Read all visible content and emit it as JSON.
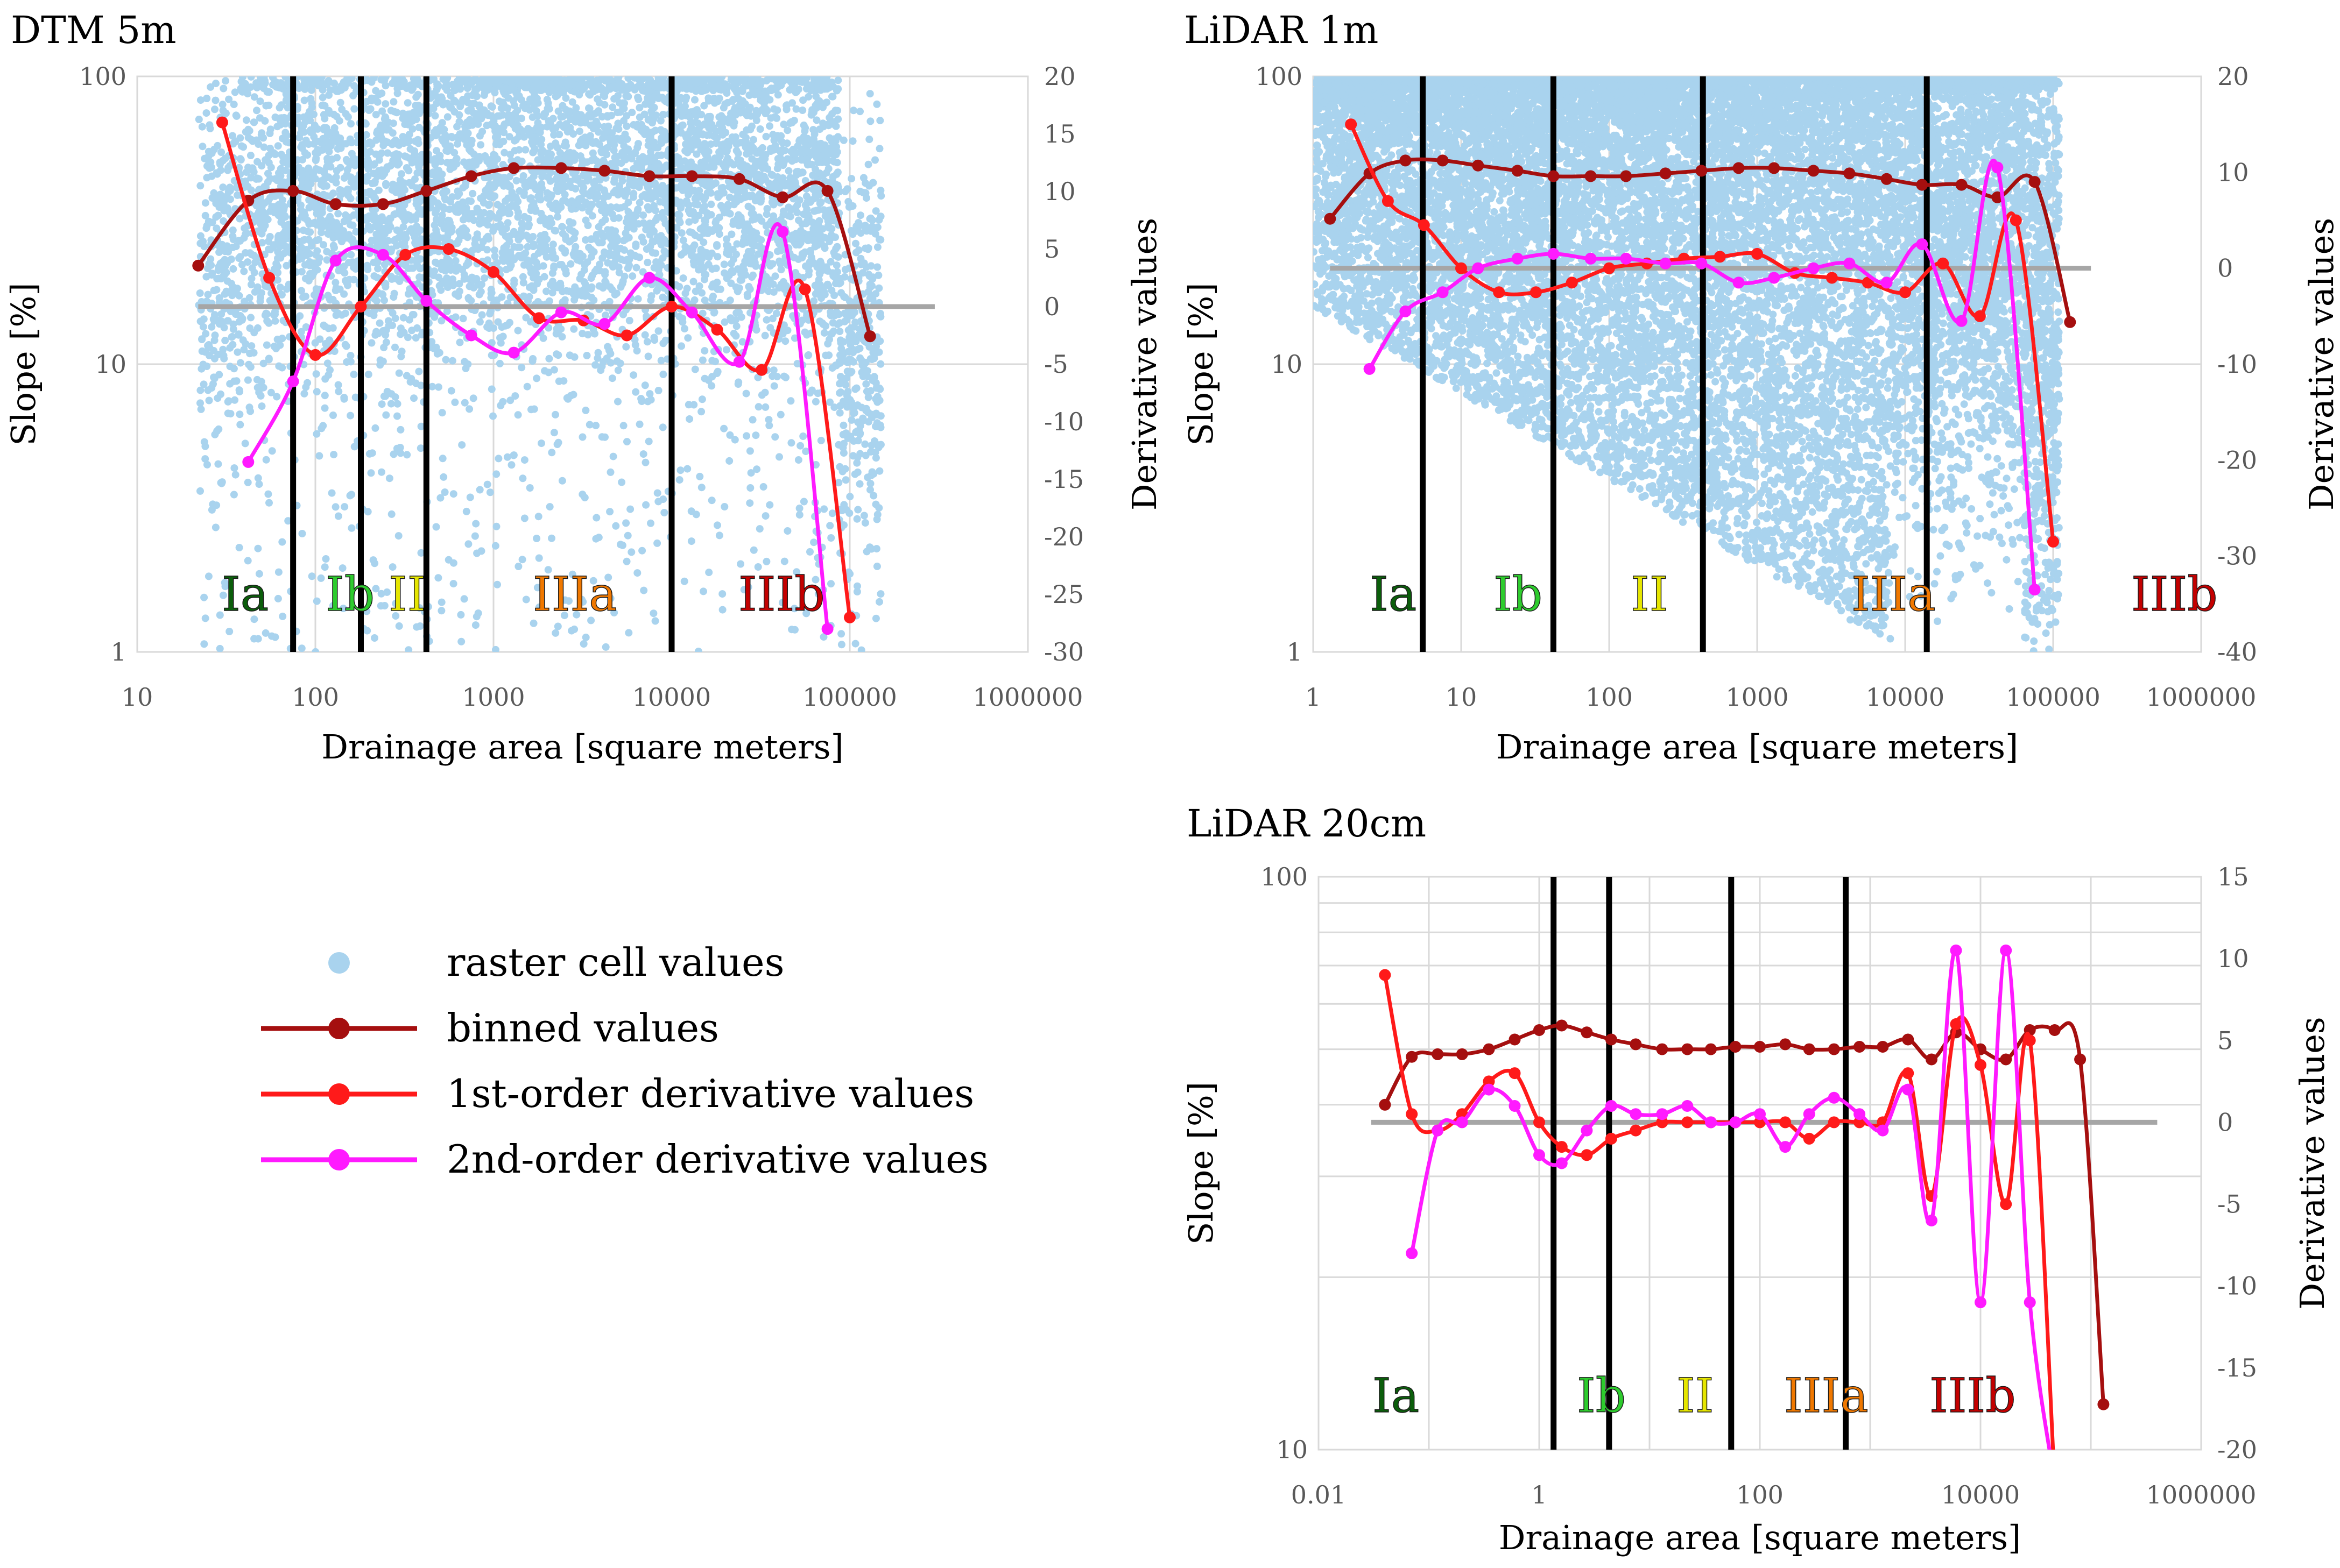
{
  "colors": {
    "raster": "#a9d3ee",
    "binned": "#a50f0f",
    "first": "#ff1a1a",
    "second": "#ff1aff",
    "zero_line": "#a6a6a6",
    "divider": "#000000",
    "grid": "#d9d9d9",
    "axis_text": "#595959",
    "label_text": "#000000",
    "region_colors": {
      "Ia": "#0b5e0b",
      "Ib": "#2ecc2e",
      "II": "#e6e600",
      "IIIa": "#f07800",
      "IIIb": "#c40000"
    }
  },
  "legend": {
    "items": [
      {
        "key": "raster",
        "label": "raster cell values"
      },
      {
        "key": "binned",
        "label": "binned values"
      },
      {
        "key": "first",
        "label": "1st-order derivative values"
      },
      {
        "key": "second",
        "label": "2nd-order derivative values"
      }
    ]
  },
  "chart_data": [
    {
      "id": "dtm5m",
      "type": "scatter",
      "title": "DTM 5m",
      "xlabel": "Drainage area [square meters]",
      "ylabel": "Slope [%]",
      "y2label": "Derivative values",
      "xlim": [
        10,
        1000000
      ],
      "ylim": [
        1,
        100
      ],
      "y2lim": [
        -30,
        20
      ],
      "x_scale": "log",
      "y_scale": "log",
      "xticks": [
        "10",
        "100",
        "1000",
        "10000",
        "100000",
        "1000000"
      ],
      "yticks": [
        "1",
        "10",
        "100"
      ],
      "y2ticks": [
        "-30",
        "-25",
        "-20",
        "-15",
        "-10",
        "-5",
        "0",
        "5",
        "10",
        "15",
        "20"
      ],
      "zero_line_range": [
        22,
        300000
      ],
      "dividers": [
        75,
        180,
        420,
        10000
      ],
      "regions": [
        "Ia",
        "Ib",
        "II",
        "IIIa",
        "IIIb"
      ],
      "scatter": {
        "x_range": [
          22,
          150000
        ],
        "y_range": [
          1,
          100
        ],
        "n": 6000
      },
      "binned": {
        "x": [
          22,
          42,
          75,
          130,
          240,
          420,
          750,
          1300,
          2400,
          4200,
          7500,
          13000,
          24000,
          42000,
          75000,
          130000
        ],
        "y": [
          22,
          37,
          40,
          36,
          36,
          40,
          45,
          48,
          48,
          47,
          45,
          45,
          44,
          38,
          40,
          12.5
        ]
      },
      "first": {
        "x": [
          30,
          55,
          100,
          180,
          320,
          560,
          1000,
          1800,
          3200,
          5600,
          10000,
          18000,
          32000,
          56000,
          100000
        ],
        "y": [
          16,
          2.5,
          -4.2,
          0,
          4.5,
          5,
          3,
          -1,
          -1.2,
          -2.5,
          0,
          -2,
          -5.5,
          1.5,
          -27
        ]
      },
      "second": {
        "x": [
          42,
          75,
          130,
          240,
          420,
          750,
          1300,
          2400,
          4200,
          7500,
          13000,
          24000,
          42000,
          75000
        ],
        "y": [
          -13.5,
          -6.5,
          4,
          4.5,
          0.5,
          -2.5,
          -4,
          -0.5,
          -1.5,
          2.5,
          -0.5,
          -4.8,
          6.5,
          -28
        ]
      }
    },
    {
      "id": "lidar1m",
      "type": "scatter",
      "title": "LiDAR 1m",
      "xlabel": "Drainage area [square meters]",
      "ylabel": "Slope [%]",
      "y2label": "Derivative values",
      "xlim": [
        1,
        1000000
      ],
      "ylim": [
        1,
        100
      ],
      "y2lim": [
        -40,
        20
      ],
      "x_scale": "log",
      "y_scale": "log",
      "xticks": [
        "1",
        "10",
        "100",
        "1000",
        "10000",
        "100000",
        "1000000"
      ],
      "yticks": [
        "1",
        "10",
        "100"
      ],
      "y2ticks": [
        "-40",
        "-30",
        "-20",
        "-10",
        "0",
        "10",
        "20"
      ],
      "zero_line_range": [
        1.3,
        180000
      ],
      "dividers": [
        5.5,
        42,
        430,
        14000
      ],
      "regions": [
        "Ia",
        "Ib",
        "II",
        "IIIa",
        "IIIb"
      ],
      "scatter": {
        "x_range": [
          1,
          110000
        ],
        "y_range": [
          1,
          100
        ],
        "n": 16000
      },
      "binned": {
        "x": [
          1.3,
          2.4,
          4.2,
          7.5,
          13,
          24,
          42,
          75,
          130,
          240,
          420,
          750,
          1300,
          2400,
          4200,
          7500,
          13000,
          24000,
          42000,
          75000,
          130000
        ],
        "y": [
          32,
          46,
          51,
          51,
          49,
          47,
          45,
          45,
          45,
          46,
          47,
          48,
          48,
          47,
          46,
          44,
          42,
          42,
          38,
          43,
          14
        ]
      },
      "first": {
        "x": [
          1.8,
          3.2,
          5.6,
          10,
          18,
          32,
          56,
          100,
          180,
          320,
          560,
          1000,
          1800,
          3200,
          5600,
          10000,
          18000,
          32000,
          56000,
          100000
        ],
        "y": [
          15,
          7,
          4.5,
          0,
          -2.5,
          -2.5,
          -1.5,
          0,
          0.5,
          1,
          1.2,
          1.5,
          -0.5,
          -1,
          -1.5,
          -2.5,
          0.5,
          -5,
          5,
          -28.5
        ]
      },
      "second": {
        "x": [
          2.4,
          4.2,
          7.5,
          13,
          24,
          42,
          75,
          130,
          240,
          420,
          750,
          1300,
          2400,
          4200,
          7500,
          13000,
          24000,
          42000,
          75000
        ],
        "y": [
          -10.5,
          -4.5,
          -2.5,
          0,
          1,
          1.5,
          1,
          1,
          0.5,
          0.5,
          -1.5,
          -1,
          0,
          0.5,
          -1.5,
          2.5,
          -5.5,
          10.5,
          -33.5
        ]
      }
    },
    {
      "id": "lidar20cm",
      "type": "line",
      "title": "LiDAR 20cm",
      "xlabel": "Drainage area [square meters]",
      "ylabel": "Slope [%]",
      "y2label": "Derivative values",
      "xlim": [
        0.01,
        1000000
      ],
      "ylim": [
        10,
        100
      ],
      "y2lim": [
        -20,
        15
      ],
      "x_scale": "log",
      "y_scale": "log",
      "xticks": [
        "0.01",
        "1",
        "100",
        "10000",
        "1000000"
      ],
      "yticks": [
        "10",
        "100"
      ],
      "y2ticks": [
        "-20",
        "-15",
        "-10",
        "-5",
        "0",
        "5",
        "10",
        "15"
      ],
      "zero_line_range": [
        0.03,
        400000
      ],
      "dividers": [
        1.35,
        4.3,
        55,
        600
      ],
      "regions": [
        "Ia",
        "Ib",
        "II",
        "IIIa",
        "IIIb"
      ],
      "binned": {
        "x": [
          0.04,
          0.07,
          0.12,
          0.2,
          0.35,
          0.6,
          1,
          1.6,
          2.7,
          4.5,
          7.5,
          13,
          22,
          36,
          60,
          100,
          170,
          280,
          470,
          800,
          1300,
          2200,
          3600,
          6000,
          10000,
          17000,
          28000,
          47000,
          80000,
          130000
        ],
        "y": [
          40,
          48.5,
          49,
          49,
          50,
          52,
          54,
          55,
          53.5,
          52,
          51,
          50,
          50,
          50,
          50.5,
          50.5,
          51,
          50,
          50,
          50.5,
          50.5,
          52,
          48,
          53.5,
          50,
          48,
          54,
          54,
          48,
          12
        ]
      },
      "first": {
        "x": [
          0.04,
          0.07,
          0.12,
          0.2,
          0.35,
          0.6,
          1,
          1.6,
          2.7,
          4.5,
          7.5,
          13,
          22,
          36,
          60,
          100,
          170,
          280,
          470,
          800,
          1300,
          2200,
          3600,
          6000,
          10000,
          17000,
          28000,
          47000
        ],
        "y": [
          9,
          0.5,
          -0.5,
          0.5,
          2.5,
          3,
          0,
          -1.5,
          -2,
          -1,
          -0.5,
          0,
          0,
          0,
          0,
          0,
          0,
          -1,
          0,
          0,
          0,
          3,
          -4.5,
          6,
          3.5,
          -5,
          5,
          -22
        ]
      },
      "second": {
        "x": [
          0.07,
          0.12,
          0.2,
          0.35,
          0.6,
          1,
          1.6,
          2.7,
          4.5,
          7.5,
          13,
          22,
          36,
          60,
          100,
          170,
          280,
          470,
          800,
          1300,
          2200,
          3600,
          6000,
          10000,
          17000,
          28000,
          47000
        ],
        "y": [
          -8,
          -0.5,
          0,
          2,
          1,
          -2,
          -2.5,
          -0.5,
          1,
          0.5,
          0.5,
          1,
          0,
          0,
          0.5,
          -1.5,
          0.5,
          1.5,
          0.5,
          -0.5,
          2,
          -6,
          10.5,
          -11,
          10.5,
          -11,
          -22
        ]
      }
    }
  ]
}
